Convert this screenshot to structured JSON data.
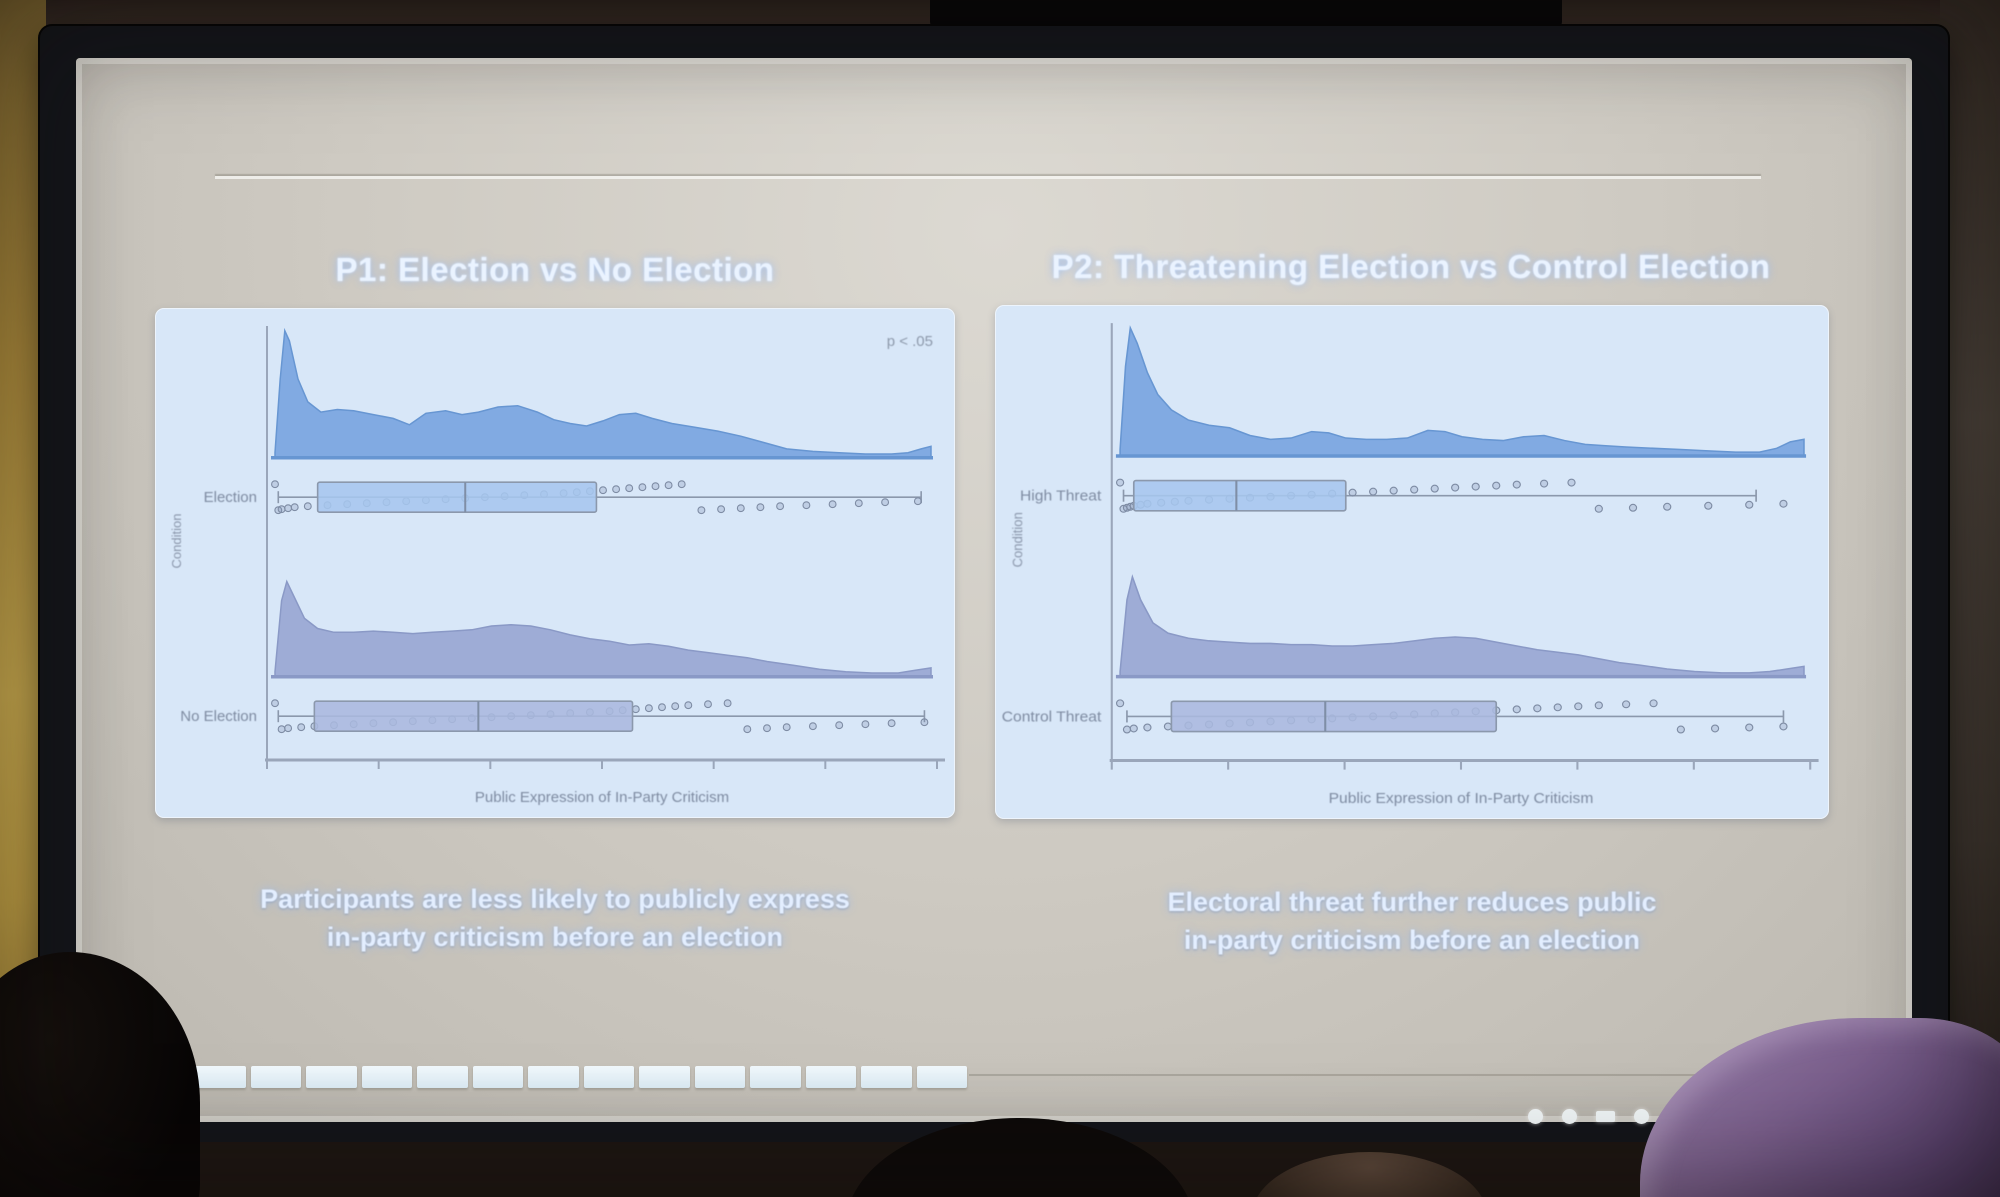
{
  "slide": {
    "title_left": "P1: Election vs No Election",
    "title_right": "P2: Threatening Election vs Control Election",
    "caption_left": [
      "Participants are less likely to publicly express",
      "in-party criticism before an election"
    ],
    "caption_right": [
      "Electoral threat further reduces public",
      "in-party criticism before an election"
    ]
  },
  "filmstrip": {
    "segments": 14
  },
  "page_indicator": {
    "shapes": [
      "dot",
      "dot",
      "bar",
      "dot",
      "dot-small"
    ]
  },
  "colors": {
    "panel_bg": "#d8e7f8",
    "cloud_blue": "#79a5e0",
    "cloud_blue_stroke": "#6796d2",
    "cloud_slate": "#99a7d2",
    "cloud_slate_stroke": "#8a99c6",
    "box_blue": "#a6c6ee",
    "box_slate": "#aab8de",
    "axis": "#9aa6ba",
    "chart_text": "#7e8ba1",
    "slide_text": "#eaf3ff"
  },
  "chart_data": [
    {
      "type": "raincloud",
      "title": "P1: Election vs No Election",
      "xlabel": "Public Expression of In-Party Criticism",
      "ylabel": "Condition",
      "annotation": "p < .05",
      "x_tick_count": 7,
      "legend": "none",
      "groups": [
        {
          "label": "Election",
          "cloud_color": "#79a5e0",
          "cloud_stroke": "#6796d2",
          "box_fill": "#a6c6ee",
          "density": [
            [
              0,
              0.04
            ],
            [
              0.008,
              0.62
            ],
            [
              0.015,
              1.0
            ],
            [
              0.022,
              0.92
            ],
            [
              0.035,
              0.62
            ],
            [
              0.05,
              0.44
            ],
            [
              0.07,
              0.36
            ],
            [
              0.095,
              0.38
            ],
            [
              0.12,
              0.37
            ],
            [
              0.15,
              0.34
            ],
            [
              0.18,
              0.31
            ],
            [
              0.205,
              0.26
            ],
            [
              0.23,
              0.35
            ],
            [
              0.26,
              0.37
            ],
            [
              0.285,
              0.34
            ],
            [
              0.31,
              0.36
            ],
            [
              0.34,
              0.4
            ],
            [
              0.37,
              0.41
            ],
            [
              0.4,
              0.36
            ],
            [
              0.425,
              0.3
            ],
            [
              0.45,
              0.27
            ],
            [
              0.475,
              0.25
            ],
            [
              0.5,
              0.29
            ],
            [
              0.525,
              0.34
            ],
            [
              0.55,
              0.35
            ],
            [
              0.575,
              0.31
            ],
            [
              0.605,
              0.27
            ],
            [
              0.64,
              0.24
            ],
            [
              0.675,
              0.21
            ],
            [
              0.71,
              0.17
            ],
            [
              0.745,
              0.12
            ],
            [
              0.78,
              0.07
            ],
            [
              0.82,
              0.05
            ],
            [
              0.86,
              0.04
            ],
            [
              0.9,
              0.03
            ],
            [
              0.94,
              0.03
            ],
            [
              0.965,
              0.04
            ],
            [
              0.985,
              0.07
            ],
            [
              1,
              0.09
            ]
          ],
          "box": {
            "lo": 0.005,
            "q1": 0.065,
            "med": 0.29,
            "q3": 0.49,
            "hi": 0.985
          },
          "points_x": [
            0,
            0.005,
            0.01,
            0.02,
            0.03,
            0.05,
            0.08,
            0.11,
            0.14,
            0.17,
            0.2,
            0.23,
            0.26,
            0.29,
            0.32,
            0.35,
            0.38,
            0.41,
            0.44,
            0.46,
            0.48,
            0.5,
            0.52,
            0.54,
            0.56,
            0.58,
            0.6,
            0.62,
            0.65,
            0.68,
            0.71,
            0.74,
            0.77,
            0.81,
            0.85,
            0.89,
            0.93,
            0.98
          ]
        },
        {
          "label": "No Election",
          "cloud_color": "#99a7d2",
          "cloud_stroke": "#8a99c6",
          "box_fill": "#aab8de",
          "density": [
            [
              0,
              0.04
            ],
            [
              0.01,
              0.6
            ],
            [
              0.018,
              0.75
            ],
            [
              0.03,
              0.62
            ],
            [
              0.045,
              0.46
            ],
            [
              0.065,
              0.38
            ],
            [
              0.09,
              0.35
            ],
            [
              0.12,
              0.35
            ],
            [
              0.15,
              0.36
            ],
            [
              0.18,
              0.35
            ],
            [
              0.21,
              0.34
            ],
            [
              0.24,
              0.35
            ],
            [
              0.27,
              0.36
            ],
            [
              0.3,
              0.37
            ],
            [
              0.33,
              0.4
            ],
            [
              0.36,
              0.41
            ],
            [
              0.39,
              0.4
            ],
            [
              0.42,
              0.37
            ],
            [
              0.45,
              0.33
            ],
            [
              0.48,
              0.3
            ],
            [
              0.51,
              0.28
            ],
            [
              0.54,
              0.25
            ],
            [
              0.57,
              0.26
            ],
            [
              0.6,
              0.24
            ],
            [
              0.63,
              0.21
            ],
            [
              0.66,
              0.19
            ],
            [
              0.69,
              0.17
            ],
            [
              0.72,
              0.15
            ],
            [
              0.75,
              0.12
            ],
            [
              0.79,
              0.09
            ],
            [
              0.83,
              0.06
            ],
            [
              0.87,
              0.04
            ],
            [
              0.91,
              0.03
            ],
            [
              0.95,
              0.03
            ],
            [
              0.975,
              0.05
            ],
            [
              1,
              0.07
            ]
          ],
          "box": {
            "lo": 0.005,
            "q1": 0.06,
            "med": 0.31,
            "q3": 0.545,
            "hi": 0.99
          },
          "points_x": [
            0,
            0.01,
            0.02,
            0.04,
            0.06,
            0.09,
            0.12,
            0.15,
            0.18,
            0.21,
            0.24,
            0.27,
            0.3,
            0.33,
            0.36,
            0.39,
            0.42,
            0.45,
            0.48,
            0.51,
            0.53,
            0.55,
            0.57,
            0.59,
            0.61,
            0.63,
            0.66,
            0.69,
            0.72,
            0.75,
            0.78,
            0.82,
            0.86,
            0.9,
            0.94,
            0.99
          ]
        }
      ]
    },
    {
      "type": "raincloud",
      "title": "P2: Threatening Election vs Control Election",
      "xlabel": "Public Expression of In-Party Criticism",
      "ylabel": "Condition",
      "annotation": "",
      "x_tick_count": 7,
      "legend": "none",
      "groups": [
        {
          "label": "High Threat",
          "cloud_color": "#79a5e0",
          "cloud_stroke": "#6796d2",
          "box_fill": "#a6c6ee",
          "density": [
            [
              0,
              0.05
            ],
            [
              0.008,
              0.7
            ],
            [
              0.015,
              1.0
            ],
            [
              0.025,
              0.88
            ],
            [
              0.04,
              0.65
            ],
            [
              0.055,
              0.48
            ],
            [
              0.075,
              0.36
            ],
            [
              0.1,
              0.28
            ],
            [
              0.13,
              0.24
            ],
            [
              0.16,
              0.22
            ],
            [
              0.19,
              0.16
            ],
            [
              0.22,
              0.13
            ],
            [
              0.25,
              0.14
            ],
            [
              0.28,
              0.19
            ],
            [
              0.305,
              0.18
            ],
            [
              0.33,
              0.14
            ],
            [
              0.36,
              0.13
            ],
            [
              0.39,
              0.13
            ],
            [
              0.42,
              0.14
            ],
            [
              0.45,
              0.2
            ],
            [
              0.475,
              0.19
            ],
            [
              0.5,
              0.15
            ],
            [
              0.53,
              0.13
            ],
            [
              0.56,
              0.12
            ],
            [
              0.59,
              0.15
            ],
            [
              0.62,
              0.16
            ],
            [
              0.65,
              0.12
            ],
            [
              0.68,
              0.09
            ],
            [
              0.71,
              0.08
            ],
            [
              0.74,
              0.07
            ],
            [
              0.78,
              0.06
            ],
            [
              0.82,
              0.05
            ],
            [
              0.86,
              0.04
            ],
            [
              0.9,
              0.03
            ],
            [
              0.935,
              0.03
            ],
            [
              0.96,
              0.06
            ],
            [
              0.98,
              0.11
            ],
            [
              1,
              0.13
            ]
          ],
          "box": {
            "lo": 0.005,
            "q1": 0.02,
            "med": 0.17,
            "q3": 0.33,
            "hi": 0.93
          },
          "points_x": [
            0,
            0.005,
            0.01,
            0.015,
            0.02,
            0.03,
            0.04,
            0.06,
            0.08,
            0.1,
            0.13,
            0.16,
            0.19,
            0.22,
            0.25,
            0.28,
            0.31,
            0.34,
            0.37,
            0.4,
            0.43,
            0.46,
            0.49,
            0.52,
            0.55,
            0.58,
            0.62,
            0.66,
            0.7,
            0.75,
            0.8,
            0.86,
            0.92,
            0.97
          ]
        },
        {
          "label": "Control Threat",
          "cloud_color": "#99a7d2",
          "cloud_stroke": "#8a99c6",
          "box_fill": "#aab8de",
          "density": [
            [
              0,
              0.04
            ],
            [
              0.01,
              0.6
            ],
            [
              0.018,
              0.78
            ],
            [
              0.03,
              0.6
            ],
            [
              0.048,
              0.42
            ],
            [
              0.07,
              0.34
            ],
            [
              0.1,
              0.3
            ],
            [
              0.13,
              0.28
            ],
            [
              0.16,
              0.27
            ],
            [
              0.19,
              0.26
            ],
            [
              0.22,
              0.26
            ],
            [
              0.25,
              0.25
            ],
            [
              0.28,
              0.25
            ],
            [
              0.31,
              0.24
            ],
            [
              0.34,
              0.24
            ],
            [
              0.37,
              0.25
            ],
            [
              0.4,
              0.26
            ],
            [
              0.43,
              0.28
            ],
            [
              0.46,
              0.3
            ],
            [
              0.49,
              0.31
            ],
            [
              0.52,
              0.3
            ],
            [
              0.55,
              0.27
            ],
            [
              0.58,
              0.24
            ],
            [
              0.61,
              0.21
            ],
            [
              0.64,
              0.19
            ],
            [
              0.67,
              0.17
            ],
            [
              0.7,
              0.14
            ],
            [
              0.73,
              0.11
            ],
            [
              0.76,
              0.09
            ],
            [
              0.8,
              0.06
            ],
            [
              0.84,
              0.04
            ],
            [
              0.88,
              0.03
            ],
            [
              0.92,
              0.03
            ],
            [
              0.95,
              0.04
            ],
            [
              0.975,
              0.06
            ],
            [
              1,
              0.08
            ]
          ],
          "box": {
            "lo": 0.01,
            "q1": 0.075,
            "med": 0.3,
            "q3": 0.55,
            "hi": 0.97
          },
          "points_x": [
            0,
            0.01,
            0.02,
            0.04,
            0.07,
            0.1,
            0.13,
            0.16,
            0.19,
            0.22,
            0.25,
            0.28,
            0.31,
            0.34,
            0.37,
            0.4,
            0.43,
            0.46,
            0.49,
            0.52,
            0.55,
            0.58,
            0.61,
            0.64,
            0.67,
            0.7,
            0.74,
            0.78,
            0.82,
            0.87,
            0.92,
            0.97
          ]
        }
      ]
    }
  ]
}
